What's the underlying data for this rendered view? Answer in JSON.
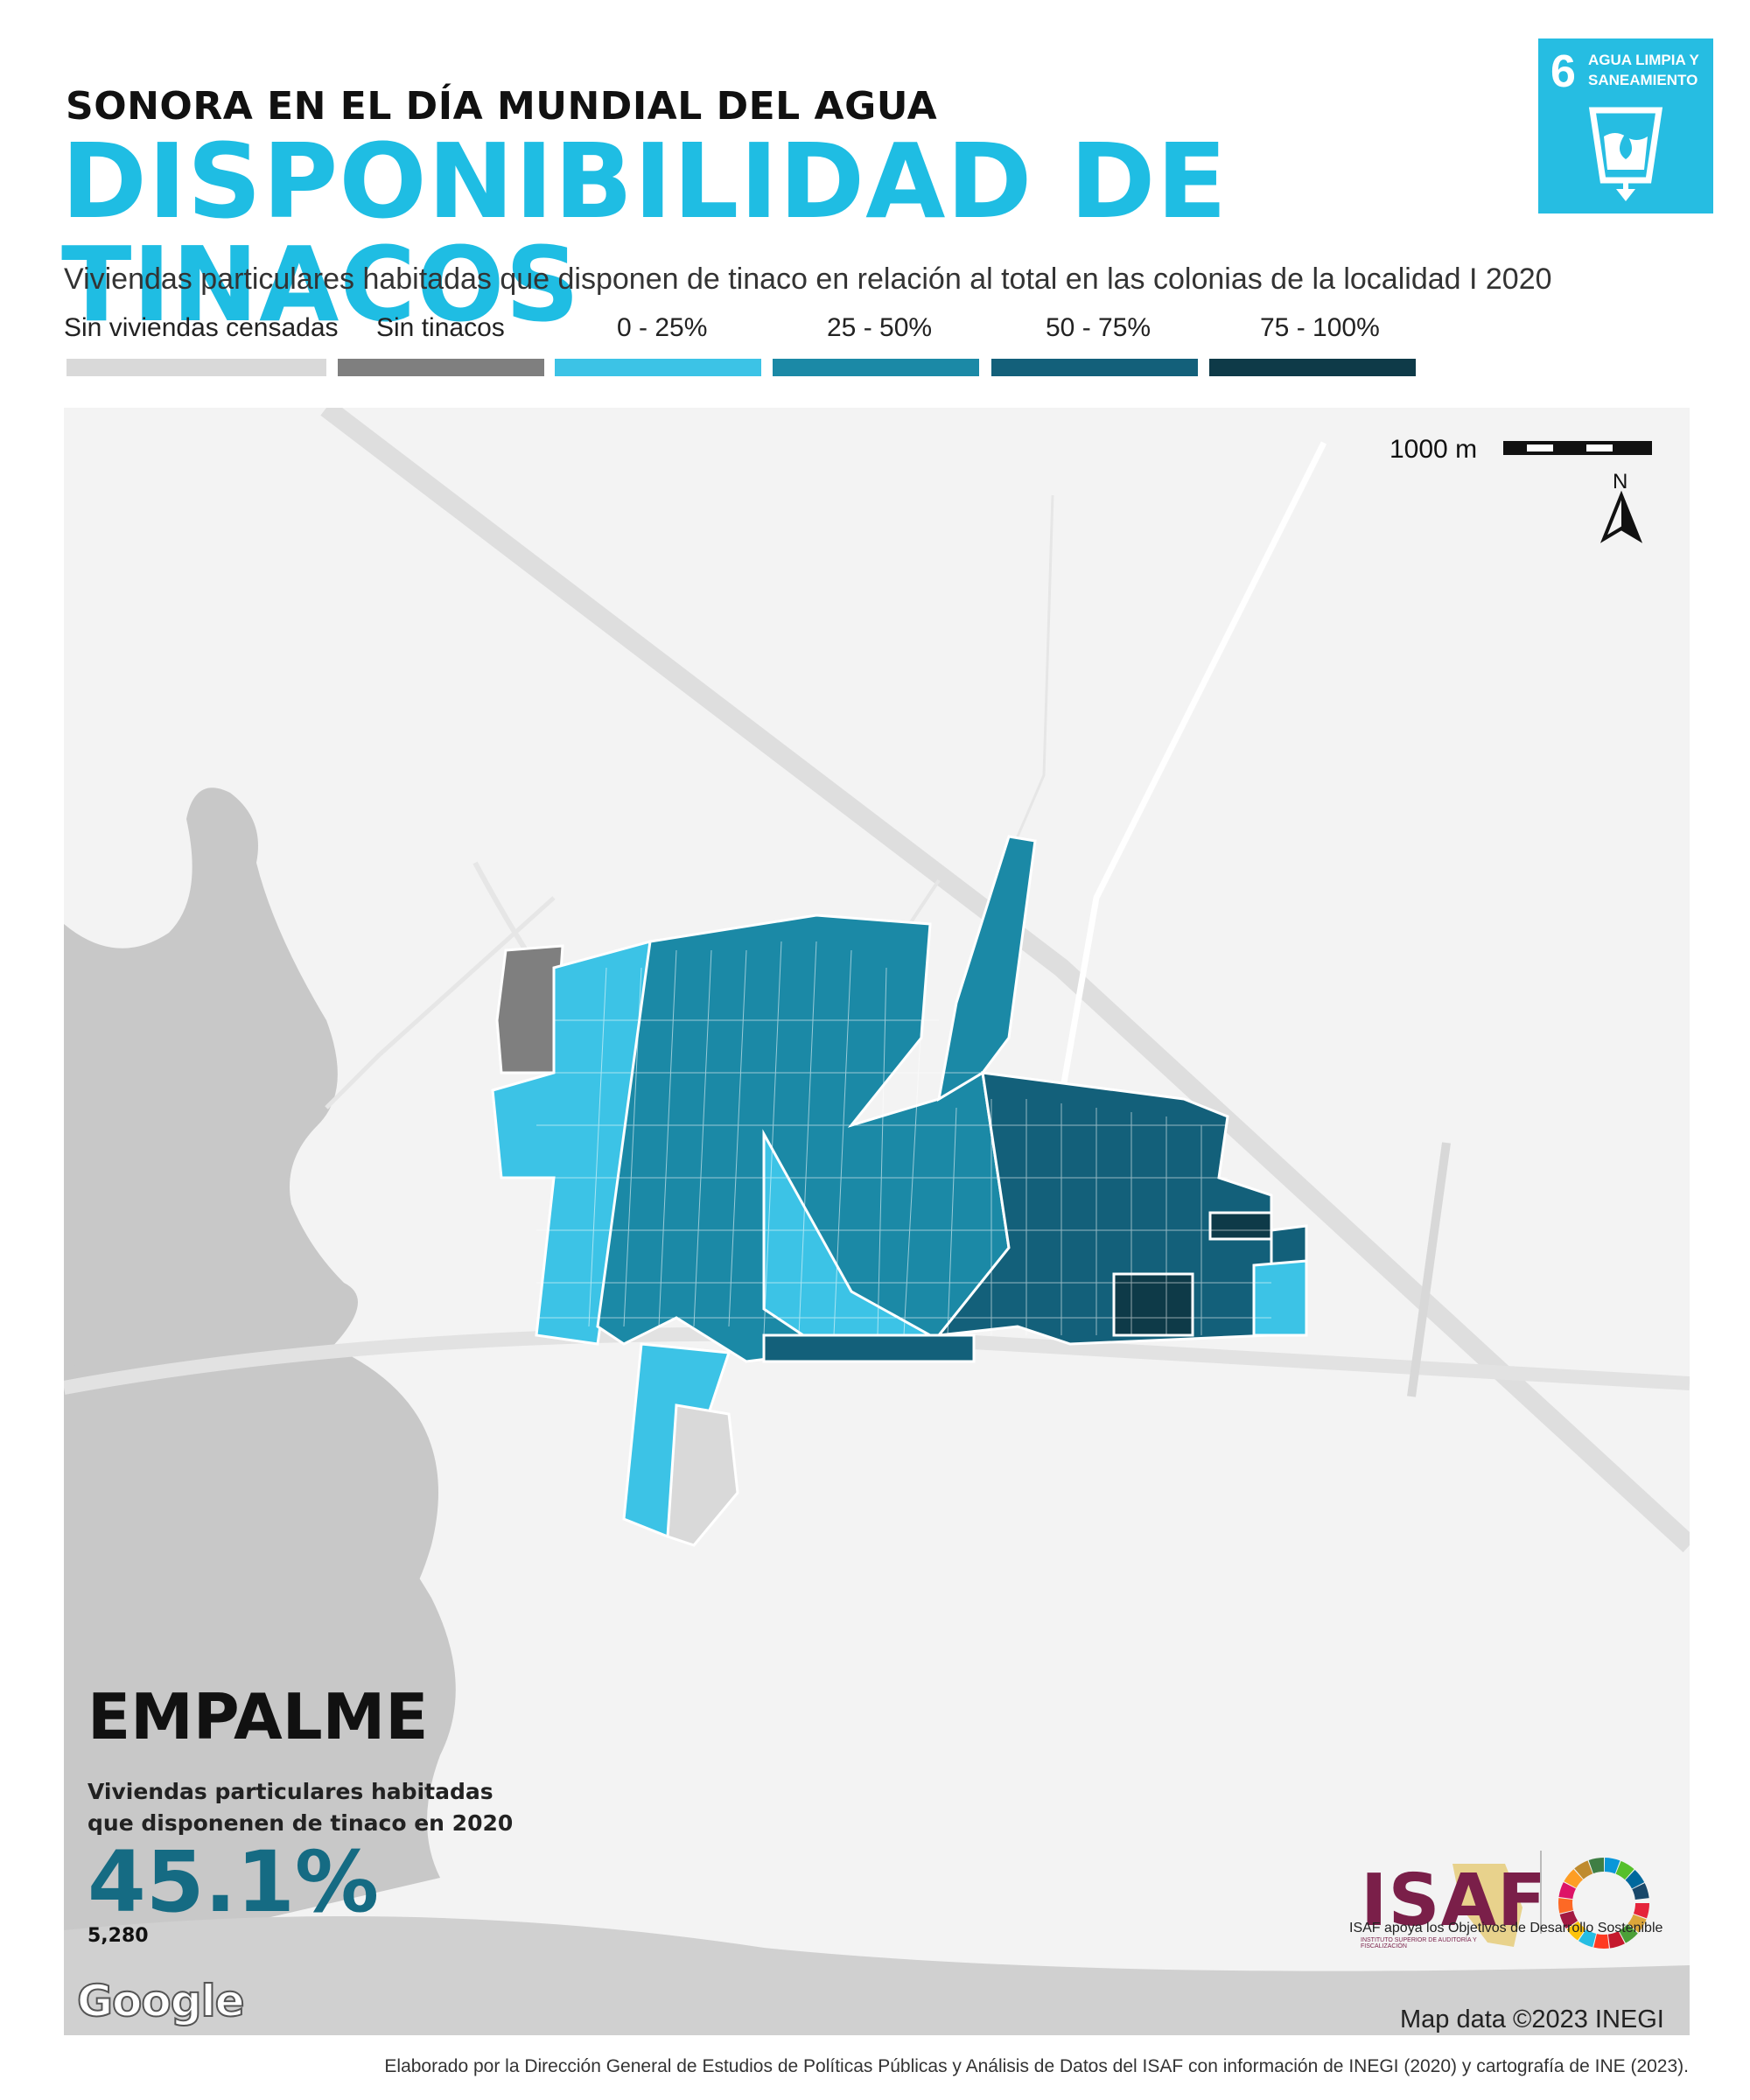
{
  "header": {
    "subtitle": "SONORA EN EL DÍA MUNDIAL DEL AGUA",
    "title": "DISPONIBILIDAD DE TINACOS",
    "description": "Viviendas particulares habitadas que disponen de tinaco en relación al total en las colonias de la localidad I 2020"
  },
  "sdg": {
    "number": "6",
    "text": "AGUA LIMPIA Y SANEAMIENTO",
    "color": "#26bde2"
  },
  "legend": [
    {
      "label": "Sin viviendas censadas",
      "color": "#d9d9d9"
    },
    {
      "label": "Sin tinacos",
      "color": "#7f7f7f"
    },
    {
      "label": "0 - 25%",
      "color": "#3cc3e6"
    },
    {
      "label": "25 - 50%",
      "color": "#1b89a6"
    },
    {
      "label": "50 - 75%",
      "color": "#13607a"
    },
    {
      "label": "75 - 100%",
      "color": "#0e3a48"
    }
  ],
  "map": {
    "scale_label": "1000 m",
    "north_label": "N",
    "city": "EMPALME",
    "stat_label": "Viviendas particulares habitadas que disponenen de tinaco en 2020",
    "stat_value": "45.1%",
    "stat_count": "5,280",
    "google": "Google",
    "attribution": "Map data ©2023 INEGI",
    "land_color": "#f3f3f3",
    "water_color": "#c8c8c8"
  },
  "branding": {
    "isaf": "ISAF",
    "isaf_fine": "INSTITUTO SUPERIOR DE AUDITORÍA Y FISCALIZACIÓN",
    "support": "ISAF apoya los Objetivos de Desarrollo Sostenible"
  },
  "footer": "Elaborado por la Dirección General de Estudios de Políticas Públicas y Análisis de Datos del ISAF con información de INEGI (2020) y cartografía de INE (2023)."
}
